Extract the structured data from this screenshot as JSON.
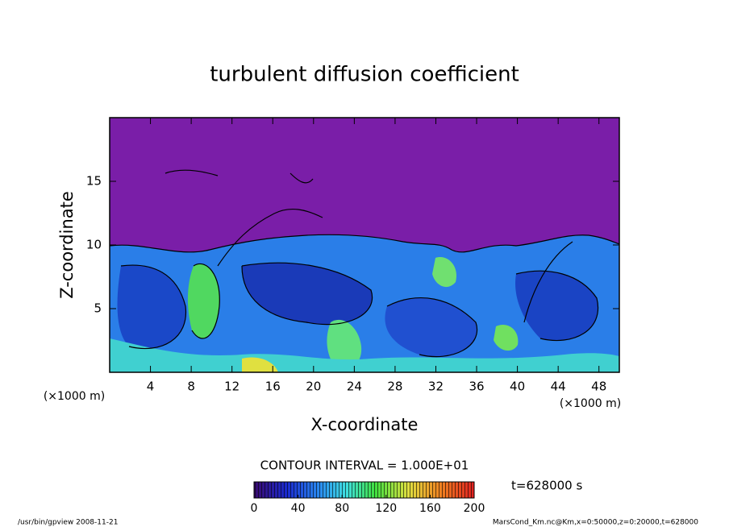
{
  "chart_data": {
    "type": "contour",
    "title": "turbulent diffusion coefficient",
    "x_label": "X-coordinate",
    "y_label": "Z-coordinate",
    "x_unit": "(×1000 m)",
    "y_unit": "(×1000 m)",
    "xlim": [
      0,
      50
    ],
    "xticks": [
      4,
      8,
      12,
      16,
      20,
      24,
      28,
      32,
      36,
      40,
      44,
      48
    ],
    "ylim": [
      0,
      20
    ],
    "yticks": [
      5,
      10,
      15
    ],
    "contour_interval": "CONTOUR INTERVAL = 1.000E+01",
    "colorbar": {
      "range": [
        0,
        200
      ],
      "ticks": [
        0,
        40,
        80,
        120,
        160,
        200
      ]
    },
    "annotation": "t=628000 s",
    "footer_left": "/usr/bin/gpview   2008-11-21",
    "footer_right": "MarsCond_Km.nc@Km,x=0:50000,z=0:20000,t=628000"
  }
}
